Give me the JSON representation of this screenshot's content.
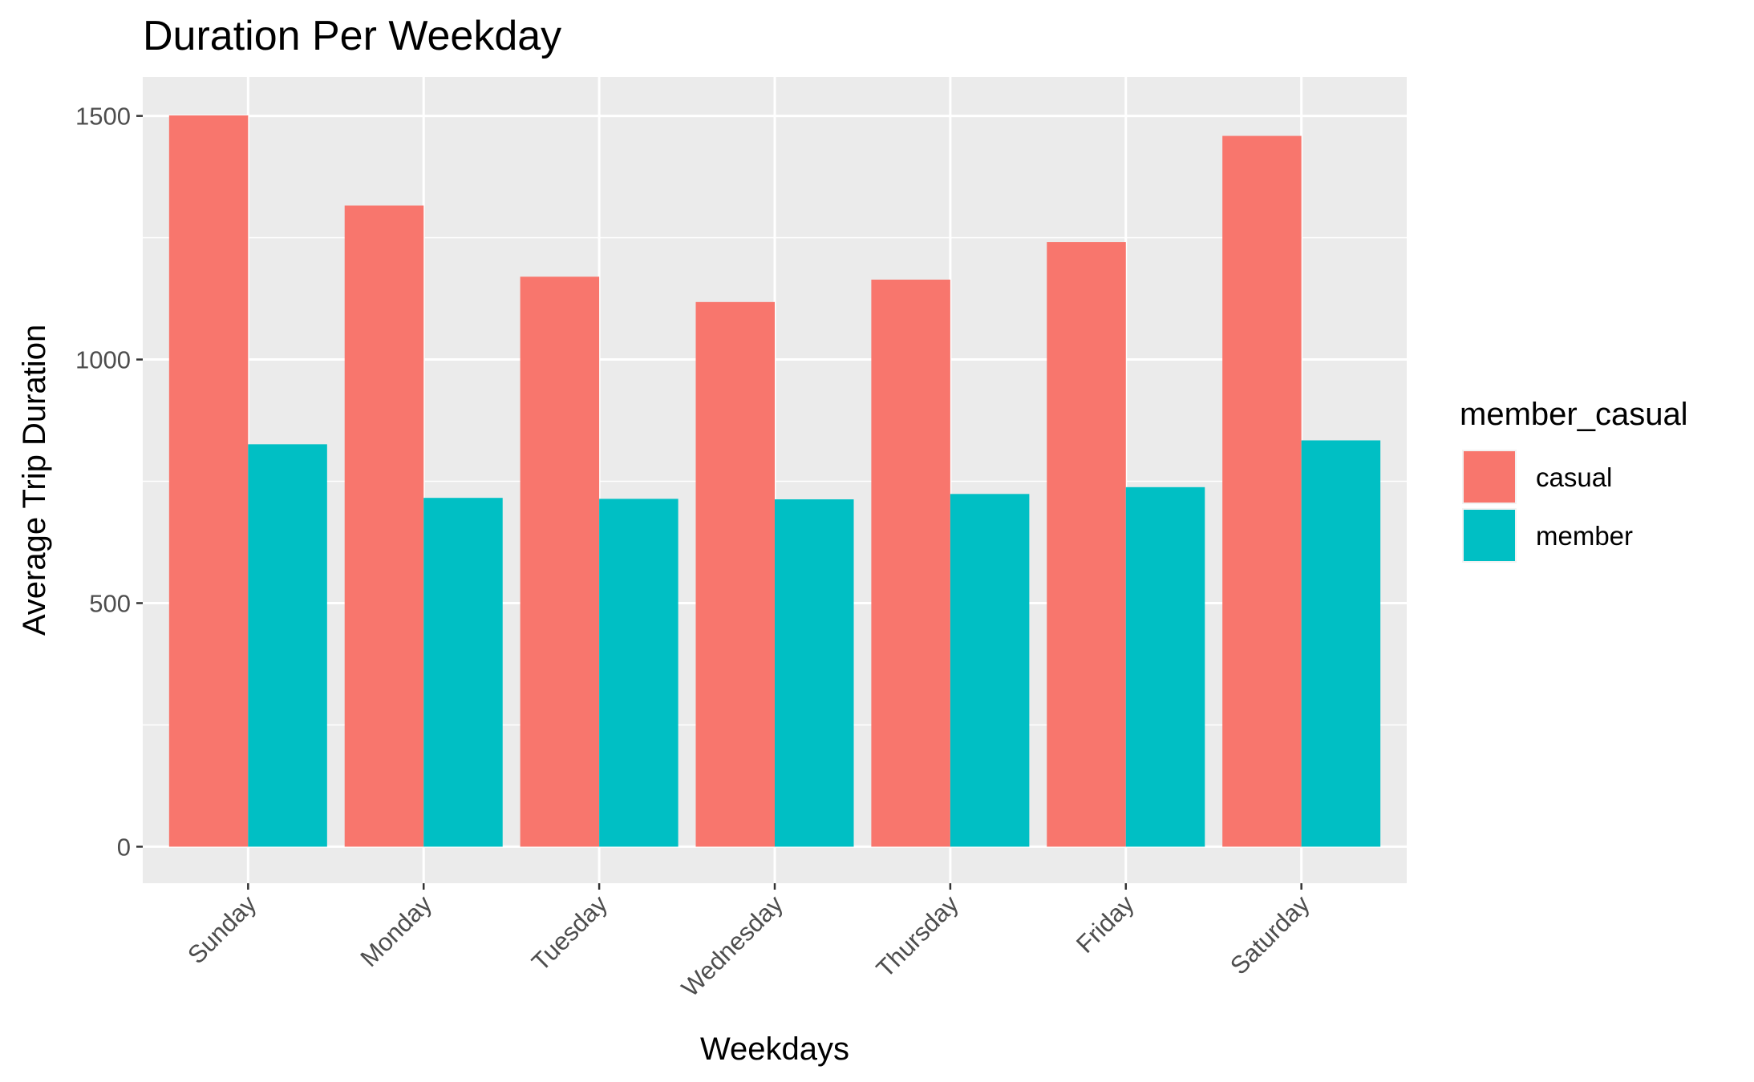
{
  "chart_data": {
    "type": "bar",
    "title": "Duration Per Weekday",
    "xlabel": "Weekdays",
    "ylabel": "Average Trip Duration",
    "categories": [
      "Sunday",
      "Monday",
      "Tuesday",
      "Wednesday",
      "Thursday",
      "Friday",
      "Saturday"
    ],
    "series": [
      {
        "name": "casual",
        "color": "#F8766D",
        "values": [
          1501,
          1316,
          1170,
          1118,
          1164,
          1241,
          1459
        ]
      },
      {
        "name": "member",
        "color": "#00BFC4",
        "values": [
          826,
          716,
          714,
          713,
          724,
          738,
          834
        ]
      }
    ],
    "ylim": [
      -75,
      1580
    ],
    "yticks": [
      0,
      500,
      1000,
      1500
    ],
    "grid": true,
    "legend": {
      "title": "member_casual",
      "position": "right"
    },
    "colors": {
      "panel_background": "#EBEBEB",
      "grid": "#FFFFFF"
    }
  }
}
